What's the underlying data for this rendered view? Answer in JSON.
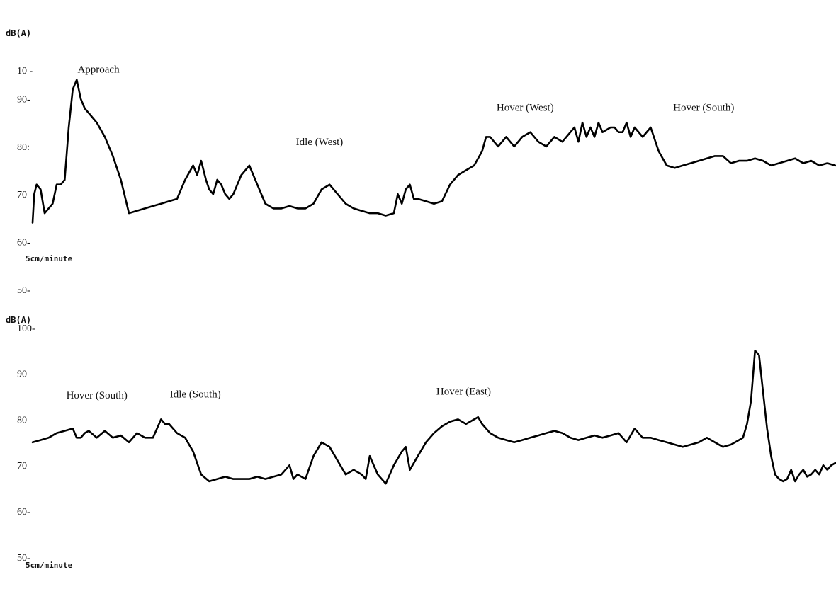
{
  "chart_data": [
    {
      "type": "line",
      "ylabel": "dB(A)",
      "ylim": [
        50,
        97
      ],
      "xlim": [
        0,
        100
      ],
      "y_ticks": [
        {
          "value": 96,
          "label": "10 -"
        },
        {
          "value": 90,
          "label": "90-"
        },
        {
          "value": 80,
          "label": "80:"
        },
        {
          "value": 70,
          "label": "70"
        },
        {
          "value": 60,
          "label": "60-"
        },
        {
          "value": 50,
          "label": "50-"
        }
      ],
      "speed_label": "5cm/minute",
      "annotations": [
        {
          "text": "Approach",
          "x": 5.6,
          "y": 95.5
        },
        {
          "text": "Idle (West)",
          "x": 32.8,
          "y": 80.3
        },
        {
          "text": "Hover (West)",
          "x": 57.8,
          "y": 87.5
        },
        {
          "text": "Hover (South)",
          "x": 79.8,
          "y": 87.5
        }
      ],
      "series": [
        {
          "x": [
            0,
            0.2,
            0.5,
            1.0,
            1.5,
            2.0,
            2.5,
            3.0,
            3.5,
            4.0,
            4.5,
            5.0,
            5.5,
            6.0,
            6.5,
            7.0,
            8.0,
            9.0,
            10.0,
            11.0,
            12.0,
            13.0,
            14.0,
            15.0,
            16.0,
            17.0,
            18.0,
            19.0,
            20.0,
            20.5,
            21.0,
            21.3,
            21.6,
            22.0,
            22.5,
            23.0,
            23.5,
            24.0,
            24.5,
            25.0,
            26.0,
            27.0,
            28.0,
            29.0,
            30.0,
            31.0,
            32.0,
            33.0,
            34.0,
            35.0,
            36.0,
            37.0,
            38.0,
            39.0,
            40.0,
            41.0,
            42.0,
            43.0,
            44.0,
            45.0,
            45.5,
            46.0,
            46.5,
            47.0,
            47.5,
            48.0,
            49.0,
            50.0,
            51.0,
            52.0,
            53.0,
            54.0,
            55.0,
            56.0,
            56.5,
            57.0,
            58.0,
            59.0,
            60.0,
            61.0,
            62.0,
            63.0,
            64.0,
            65.0,
            66.0,
            67.0,
            67.5,
            68.0,
            68.5,
            69.0,
            69.5,
            70.0,
            70.5,
            71.0,
            72.0,
            72.5,
            73.0,
            73.5,
            74.0,
            74.5,
            75.0,
            76.0,
            77.0,
            78.0,
            79.0,
            80.0,
            81.0,
            82.0,
            83.0,
            84.0,
            85.0,
            86.0,
            87.0,
            88.0,
            89.0,
            90.0,
            91.0,
            92.0,
            93.0,
            94.0,
            95.0,
            96.0,
            97.0,
            98.0,
            99.0,
            100.0
          ],
          "values": [
            64,
            70,
            72,
            71,
            66,
            67,
            68,
            72,
            72,
            73,
            84,
            92,
            94,
            90,
            88,
            87,
            85,
            82,
            78,
            73,
            66,
            66.5,
            67,
            67.5,
            68,
            68.5,
            69,
            73,
            76,
            74,
            77,
            75,
            73,
            71,
            70,
            73,
            72,
            70,
            69,
            70,
            74,
            76,
            72,
            68,
            67,
            67,
            67.5,
            67,
            67,
            68,
            71,
            72,
            70,
            68,
            67,
            66.5,
            66,
            66,
            65.5,
            66,
            70,
            68,
            71,
            72,
            69,
            69,
            68.5,
            68,
            68.5,
            72,
            74,
            75,
            76,
            79,
            82,
            82,
            80,
            82,
            80,
            82,
            83,
            81,
            80,
            82,
            81,
            83,
            84,
            81,
            85,
            82,
            84,
            82,
            85,
            83,
            84,
            84,
            83,
            83,
            85,
            82,
            84,
            82,
            84,
            79,
            76,
            75.5,
            76,
            76.5,
            77,
            77.5,
            78,
            78,
            76.5,
            77,
            77,
            77.5,
            77,
            76,
            76.5,
            77,
            77.5,
            76.5,
            77,
            76,
            76.5,
            76
          ]
        }
      ]
    },
    {
      "type": "line",
      "ylabel": "dB(A)",
      "ylim": [
        40,
        100
      ],
      "xlim": [
        0,
        100
      ],
      "y_ticks": [
        {
          "value": 100,
          "label": "100-"
        },
        {
          "value": 90,
          "label": "90"
        },
        {
          "value": 80,
          "label": "80"
        },
        {
          "value": 70,
          "label": "70"
        },
        {
          "value": 60,
          "label": "60-"
        },
        {
          "value": 50,
          "label": "50-"
        }
      ],
      "speed_label": "5cm/minute",
      "annotations": [
        {
          "text": "Hover (South)",
          "x": 4.2,
          "y": 84.5
        },
        {
          "text": "Idle (South)",
          "x": 17.1,
          "y": 84.8
        },
        {
          "text": "Hover (East)",
          "x": 50.3,
          "y": 85.4
        }
      ],
      "series": [
        {
          "x": [
            0,
            1.0,
            2.0,
            3.0,
            4.0,
            5.0,
            5.5,
            6.0,
            6.5,
            7.0,
            8.0,
            9.0,
            10.0,
            11.0,
            12.0,
            13.0,
            14.0,
            15.0,
            15.5,
            16.0,
            16.5,
            17.0,
            18.0,
            19.0,
            20.0,
            21.0,
            22.0,
            23.0,
            24.0,
            25.0,
            26.0,
            27.0,
            28.0,
            29.0,
            30.0,
            31.0,
            32.0,
            32.5,
            33.0,
            34.0,
            35.0,
            36.0,
            37.0,
            38.0,
            39.0,
            40.0,
            41.0,
            41.5,
            42.0,
            42.5,
            43.0,
            44.0,
            45.0,
            46.0,
            46.5,
            47.0,
            48.0,
            49.0,
            50.0,
            51.0,
            52.0,
            53.0,
            54.0,
            55.0,
            55.5,
            56.0,
            57.0,
            58.0,
            59.0,
            60.0,
            61.0,
            62.0,
            63.0,
            64.0,
            65.0,
            66.0,
            67.0,
            68.0,
            69.0,
            70.0,
            71.0,
            72.0,
            73.0,
            74.0,
            75.0,
            75.5,
            76.0,
            77.0,
            78.0,
            79.0,
            80.0,
            81.0,
            82.0,
            83.0,
            84.0,
            85.0,
            86.0,
            87.0,
            88.0,
            88.5,
            89.0,
            89.5,
            90.0,
            90.5,
            91.0,
            91.5,
            92.0,
            92.5,
            93.0,
            93.5,
            94.0,
            94.5,
            95.0,
            95.5,
            96.0,
            96.5,
            97.0,
            97.5,
            98.0,
            98.5,
            99.0,
            99.5,
            100.0
          ],
          "values": [
            75,
            75.5,
            76,
            77,
            77.5,
            78,
            76,
            76,
            77,
            77.5,
            76,
            77.5,
            76,
            76.5,
            75,
            77,
            76,
            76,
            78,
            80,
            79,
            79,
            77,
            76,
            73,
            68,
            66.5,
            67,
            67.5,
            67,
            67,
            67,
            67.5,
            67,
            67.5,
            68,
            70,
            67,
            68,
            67,
            72,
            75,
            74,
            71,
            68,
            69,
            68,
            67,
            72,
            70,
            68,
            66,
            70,
            73,
            74,
            69,
            72,
            75,
            77,
            78.5,
            79.5,
            80,
            79,
            80,
            80.5,
            79,
            77,
            76,
            75.5,
            75,
            75.5,
            76,
            76.5,
            77,
            77.5,
            77,
            76,
            75.5,
            76,
            76.5,
            76,
            76.5,
            77,
            75,
            78,
            77,
            76,
            76,
            75.5,
            75,
            74.5,
            74,
            74.5,
            75,
            76,
            75,
            74,
            74.5,
            75.5,
            76,
            79,
            84,
            95,
            94,
            86,
            78,
            72,
            68,
            67,
            66.5,
            67,
            69,
            66.5,
            68,
            69,
            67.5,
            68,
            69,
            68,
            70,
            69,
            70,
            70.5
          ]
        }
      ]
    }
  ]
}
